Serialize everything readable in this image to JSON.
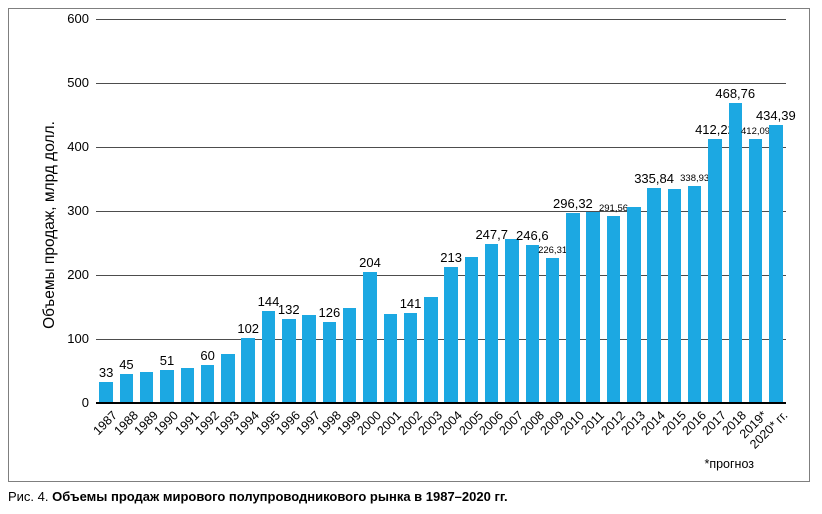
{
  "figure": {
    "caption_prefix": "Рис. 4.",
    "caption": "Объемы продаж мирового полупроводникового рынка в 1987–2020 гг.",
    "footnote": "*прогноз"
  },
  "colors": {
    "bar": "#1CA8E2",
    "gridline": "#4D4D4D",
    "axis": "#000000",
    "frame_border": "#7F7F7F",
    "text": "#000000"
  },
  "chart_data": {
    "type": "bar",
    "title": "",
    "xlabel": "",
    "ylabel": "Объемы продаж, млрд долл.",
    "ylim": [
      0,
      600
    ],
    "yticks": [
      0,
      100,
      200,
      300,
      400,
      500,
      600
    ],
    "grid": true,
    "legend": false,
    "categories": [
      "1987",
      "1988",
      "1989",
      "1990",
      "1991",
      "1992",
      "1993",
      "1994",
      "1995",
      "1996",
      "1997",
      "1998",
      "1999",
      "2000",
      "2001",
      "2002",
      "2003",
      "2004",
      "2005",
      "2006",
      "2007",
      "2008",
      "2009",
      "2010",
      "2011",
      "2012",
      "2013",
      "2014",
      "2015",
      "2016",
      "2017",
      "2018",
      "2019*",
      "2020* гг."
    ],
    "values": [
      33,
      45,
      49,
      51,
      55,
      60,
      77,
      102,
      144,
      132,
      137,
      126,
      149,
      204,
      139,
      141,
      166,
      213,
      228,
      247.7,
      256,
      246.6,
      226.31,
      296.32,
      299,
      291.56,
      306,
      335.84,
      335,
      338.93,
      412.22,
      468.76,
      412.09,
      434.39
    ],
    "bar_labels": [
      "33",
      "45",
      "",
      "51",
      "",
      "60",
      "",
      "102",
      "144",
      "132",
      "",
      "126",
      "",
      "204",
      "",
      "141",
      "",
      "213",
      "",
      "247,7",
      "",
      "246,6",
      "226,31",
      "296,32",
      "",
      "291,56",
      "",
      "335,84",
      "",
      "338,93",
      "412,22",
      "468,76",
      "412,09",
      "434,39"
    ],
    "small_label_indices": [
      22,
      25,
      29,
      32
    ]
  }
}
